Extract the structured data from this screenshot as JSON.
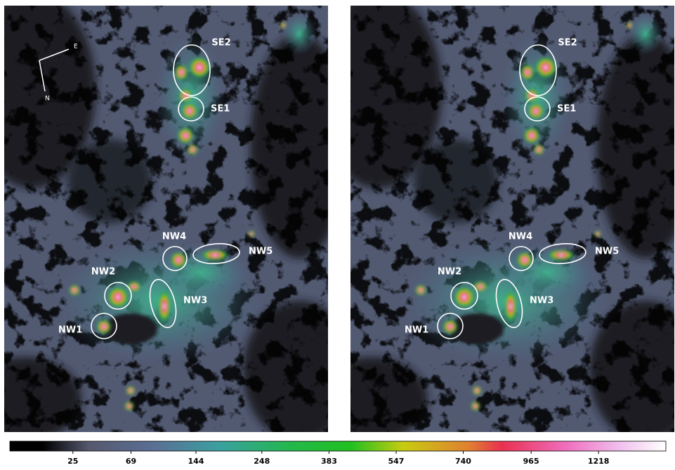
{
  "panels": [
    {
      "compass": {
        "east": "E",
        "north": "N"
      },
      "regions": [
        "SE2",
        "SE1",
        "NW4",
        "NW5",
        "NW2",
        "NW3",
        "NW1"
      ]
    },
    {
      "regions": [
        "SE2",
        "SE1",
        "NW4",
        "NW5",
        "NW2",
        "NW3",
        "NW1"
      ]
    }
  ],
  "colorbar": {
    "scale": "sqrt",
    "range": [
      2,
      1500
    ],
    "ticks": [
      25,
      69,
      144,
      248,
      383,
      547,
      740,
      965,
      1218
    ]
  }
}
